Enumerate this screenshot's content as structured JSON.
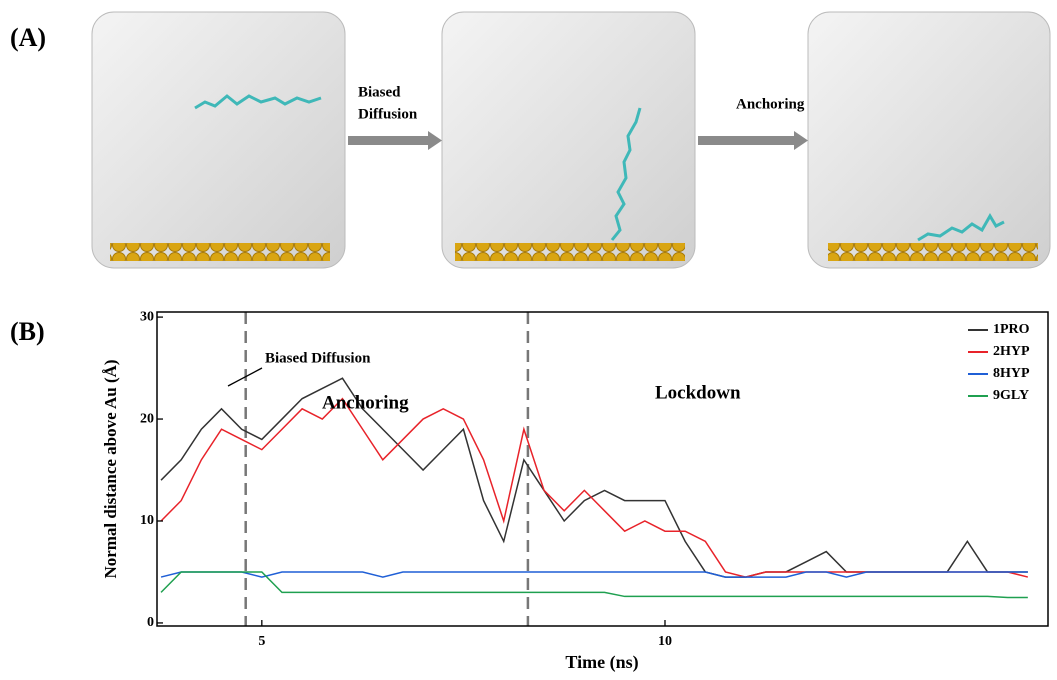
{
  "panel_a": {
    "label": "(A)",
    "arrow_1": [
      "Biased",
      "Diffusion"
    ],
    "arrow_2": "Anchoring"
  },
  "chart_data": {
    "type": "line",
    "panel_label": "(B)",
    "x_label": "Time (ns)",
    "y_label": "Normal distance above Au (Å)",
    "annotations": [
      "Biased Diffusion",
      "Anchoring",
      "Lockdown"
    ],
    "vlines": [
      4.8,
      8.3
    ],
    "xlim": [
      3.7,
      14.75
    ],
    "ylim": [
      -0.3,
      30.5
    ],
    "xticks": [
      5,
      10
    ],
    "yticks": [
      0,
      10,
      20,
      30
    ],
    "x": [
      3.75,
      4,
      4.25,
      4.5,
      4.75,
      5,
      5.25,
      5.5,
      5.75,
      6,
      6.25,
      6.5,
      6.75,
      7,
      7.25,
      7.5,
      7.75,
      8,
      8.25,
      8.5,
      8.75,
      9,
      9.25,
      9.5,
      9.75,
      10,
      10.25,
      10.5,
      10.75,
      11,
      11.25,
      11.5,
      11.75,
      12,
      12.25,
      12.5,
      12.75,
      13,
      13.25,
      13.5,
      13.75,
      14,
      14.25,
      14.5
    ],
    "series": [
      {
        "name": "1PRO",
        "color": "#333333",
        "values": [
          14,
          16,
          19,
          21,
          19,
          18,
          20,
          22,
          23,
          24,
          21,
          19,
          17,
          15,
          17,
          19,
          12,
          8,
          16,
          13,
          10,
          12,
          13,
          12,
          12,
          12,
          8,
          5,
          4.5,
          4.5,
          5,
          5,
          6,
          7,
          5,
          5,
          5,
          5,
          5,
          5,
          8,
          5,
          5,
          5
        ]
      },
      {
        "name": "2HYP",
        "color": "#e8232a",
        "values": [
          10,
          12,
          16,
          19,
          18,
          17,
          19,
          21,
          20,
          22,
          19,
          16,
          18,
          20,
          21,
          20,
          16,
          10,
          19,
          13,
          11,
          13,
          11,
          9,
          10,
          9,
          9,
          8,
          5,
          4.5,
          5,
          5,
          5,
          5,
          5,
          5,
          5,
          5,
          5,
          5,
          5,
          5,
          5,
          4.5
        ]
      },
      {
        "name": "8HYP",
        "color": "#1f5fd6",
        "values": [
          4.5,
          5,
          5,
          5,
          5,
          4.5,
          5,
          5,
          5,
          5,
          5,
          4.5,
          5,
          5,
          5,
          5,
          5,
          5,
          5,
          5,
          5,
          5,
          5,
          5,
          5,
          5,
          5,
          5,
          4.5,
          4.5,
          4.5,
          4.5,
          5,
          5,
          4.5,
          5,
          5,
          5,
          5,
          5,
          5,
          5,
          5,
          5
        ]
      },
      {
        "name": "9GLY",
        "color": "#1fa050",
        "values": [
          3,
          5,
          5,
          5,
          5,
          5,
          3,
          3,
          3,
          3,
          3,
          3,
          3,
          3,
          3,
          3,
          3,
          3,
          3,
          3,
          3,
          3,
          3,
          2.6,
          2.6,
          2.6,
          2.6,
          2.6,
          2.6,
          2.6,
          2.6,
          2.6,
          2.6,
          2.6,
          2.6,
          2.6,
          2.6,
          2.6,
          2.6,
          2.6,
          2.6,
          2.6,
          2.5,
          2.5
        ]
      }
    ]
  }
}
